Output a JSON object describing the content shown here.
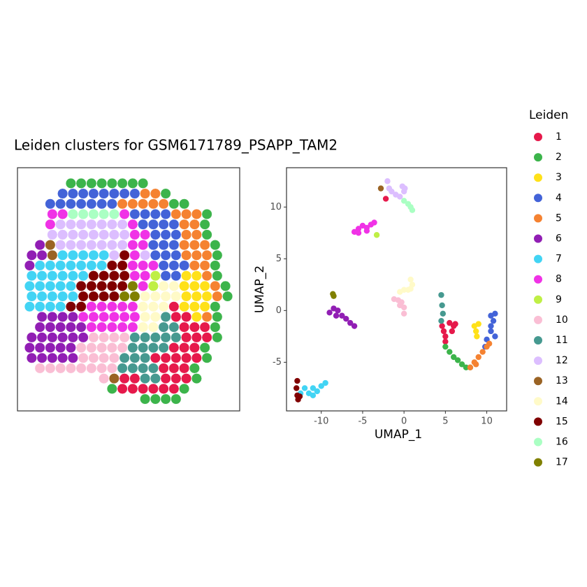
{
  "chart_data": [
    {
      "type": "spatial",
      "title": "Leiden clusters for GSM6171789_PSAPP_TAM2",
      "cells": [
        [
          null,
          null,
          null,
          null,
          2,
          2,
          2,
          2,
          2,
          2,
          2,
          2,
          null,
          null,
          null,
          null,
          null,
          null,
          null,
          null
        ],
        [
          null,
          null,
          null,
          4,
          4,
          4,
          4,
          4,
          4,
          4,
          4,
          5,
          5,
          2,
          null,
          null,
          null,
          null,
          null,
          null
        ],
        [
          null,
          null,
          4,
          4,
          4,
          4,
          4,
          4,
          4,
          5,
          5,
          5,
          5,
          5,
          2,
          2,
          null,
          null,
          null,
          null
        ],
        [
          null,
          null,
          8,
          8,
          16,
          16,
          16,
          16,
          16,
          8,
          4,
          4,
          4,
          4,
          5,
          5,
          5,
          2,
          null,
          null
        ],
        [
          null,
          null,
          8,
          12,
          12,
          12,
          12,
          12,
          12,
          12,
          8,
          4,
          4,
          4,
          4,
          5,
          5,
          2,
          null,
          null
        ],
        [
          null,
          null,
          12,
          12,
          12,
          12,
          12,
          12,
          12,
          12,
          8,
          8,
          4,
          4,
          4,
          5,
          5,
          2,
          null,
          null
        ],
        [
          null,
          6,
          13,
          12,
          12,
          12,
          12,
          12,
          12,
          12,
          8,
          8,
          4,
          4,
          4,
          5,
          5,
          5,
          2,
          null
        ],
        [
          6,
          6,
          13,
          7,
          7,
          7,
          7,
          7,
          12,
          15,
          8,
          12,
          4,
          4,
          4,
          5,
          5,
          5,
          2,
          null
        ],
        [
          6,
          7,
          7,
          7,
          7,
          7,
          7,
          7,
          15,
          15,
          8,
          8,
          8,
          4,
          4,
          4,
          5,
          5,
          2,
          null
        ],
        [
          7,
          7,
          7,
          7,
          7,
          7,
          15,
          15,
          15,
          15,
          8,
          8,
          9,
          4,
          4,
          3,
          3,
          5,
          2,
          null
        ],
        [
          7,
          7,
          7,
          7,
          7,
          15,
          15,
          15,
          15,
          15,
          17,
          8,
          9,
          14,
          14,
          3,
          3,
          3,
          5,
          2
        ],
        [
          7,
          7,
          7,
          7,
          7,
          15,
          15,
          15,
          15,
          17,
          17,
          14,
          14,
          14,
          14,
          3,
          3,
          3,
          5,
          2
        ],
        [
          7,
          7,
          7,
          7,
          15,
          15,
          8,
          8,
          8,
          8,
          8,
          14,
          14,
          14,
          1,
          3,
          3,
          3,
          2,
          null
        ],
        [
          null,
          6,
          6,
          6,
          6,
          8,
          8,
          8,
          8,
          8,
          8,
          14,
          14,
          11,
          1,
          1,
          3,
          5,
          2,
          null
        ],
        [
          null,
          6,
          6,
          6,
          6,
          6,
          8,
          8,
          8,
          8,
          8,
          14,
          14,
          11,
          11,
          1,
          1,
          1,
          2,
          null
        ],
        [
          6,
          6,
          6,
          6,
          6,
          6,
          10,
          10,
          10,
          10,
          11,
          11,
          11,
          11,
          11,
          1,
          1,
          1,
          2,
          null
        ],
        [
          6,
          6,
          6,
          6,
          6,
          10,
          10,
          10,
          10,
          10,
          11,
          11,
          11,
          11,
          1,
          1,
          1,
          2,
          null,
          null
        ],
        [
          6,
          6,
          6,
          6,
          6,
          10,
          10,
          10,
          10,
          11,
          11,
          11,
          1,
          1,
          1,
          1,
          1,
          2,
          null,
          null
        ],
        [
          null,
          10,
          10,
          10,
          10,
          10,
          10,
          10,
          10,
          11,
          11,
          11,
          11,
          1,
          1,
          1,
          2,
          null,
          null,
          null
        ],
        [
          null,
          null,
          null,
          null,
          null,
          null,
          null,
          10,
          13,
          1,
          1,
          11,
          11,
          1,
          1,
          1,
          2,
          null,
          null,
          null
        ],
        [
          null,
          null,
          null,
          null,
          null,
          null,
          null,
          null,
          2,
          1,
          1,
          1,
          1,
          1,
          1,
          2,
          null,
          null,
          null,
          null
        ],
        [
          null,
          null,
          null,
          null,
          null,
          null,
          null,
          null,
          null,
          null,
          null,
          2,
          2,
          2,
          2,
          null,
          null,
          null,
          null,
          null
        ]
      ]
    },
    {
      "type": "scatter",
      "x_label": "UMAP_1",
      "y_label": "UMAP_2",
      "xlim": [
        -14.2,
        12.4
      ],
      "ylim": [
        -9.7,
        13.8
      ],
      "xticks": [
        -10,
        -5,
        0,
        5,
        10
      ],
      "yticks": [
        -5,
        0,
        5,
        10
      ],
      "grid": false,
      "legend_title": "Leiden",
      "legend_position": "right",
      "series": [
        {
          "name": "1",
          "color": "#e6194b",
          "x": [
            4.6,
            5,
            5.5,
            6.2,
            5,
            4.8,
            5.8,
            6,
            -2.2
          ],
          "y": [
            -1.5,
            -2.5,
            -1.2,
            -1.3,
            -3,
            -2,
            -2,
            -1.5,
            10.8
          ]
        },
        {
          "name": "2",
          "color": "#3cb44b",
          "x": [
            5,
            5.5,
            6,
            6.5,
            7,
            7.5,
            8
          ],
          "y": [
            -3.5,
            -4,
            -4.5,
            -4.8,
            -5.2,
            -5.5,
            -5.5
          ]
        },
        {
          "name": "3",
          "color": "#ffe119",
          "x": [
            8.5,
            8.7,
            8.8,
            9
          ],
          "y": [
            -1.5,
            -2,
            -2.5,
            -1.3
          ]
        },
        {
          "name": "4",
          "color": "#4363d8",
          "x": [
            10.5,
            10.8,
            10.5,
            11,
            10,
            9.8,
            10.5,
            11
          ],
          "y": [
            -0.5,
            -1,
            -2,
            -2.5,
            -2.8,
            -3.5,
            -1.5,
            -0.3
          ]
        },
        {
          "name": "5",
          "color": "#f58231",
          "x": [
            8,
            8.5,
            9,
            9.5,
            10,
            10.3,
            8.7
          ],
          "y": [
            -5.5,
            -5,
            -4.5,
            -4,
            -3.5,
            -3.2,
            -5.2
          ]
        },
        {
          "name": "6",
          "color": "#911eb4",
          "x": [
            -9,
            -8.5,
            -8,
            -7.5,
            -7,
            -6.5,
            -6,
            -8.2
          ],
          "y": [
            -0.2,
            0.2,
            0,
            -0.5,
            -0.8,
            -1.2,
            -1.5,
            -0.5
          ]
        },
        {
          "name": "7",
          "color": "#42d4f4",
          "x": [
            -12,
            -11.5,
            -11,
            -10.5,
            -10,
            -9.5,
            -12.5,
            -11
          ],
          "y": [
            -7.5,
            -8,
            -8.2,
            -7.8,
            -7.3,
            -7,
            -8,
            -7.5
          ]
        },
        {
          "name": "8",
          "color": "#f032e6",
          "x": [
            -6,
            -5.5,
            -5,
            -4.5,
            -4,
            -3.6,
            -5.5,
            -4.5
          ],
          "y": [
            7.6,
            7.9,
            8.2,
            8,
            8.3,
            8.5,
            7.5,
            7.7
          ]
        },
        {
          "name": "9",
          "color": "#bfef45",
          "x": [
            -3.3
          ],
          "y": [
            7.3
          ]
        },
        {
          "name": "10",
          "color": "#fabed4",
          "x": [
            -1.2,
            -0.7,
            -0.5,
            0,
            0,
            -0.3
          ],
          "y": [
            1.1,
            1,
            0.5,
            0.3,
            -0.3,
            0.8
          ]
        },
        {
          "name": "11",
          "color": "#469990",
          "x": [
            4.5,
            4.6,
            4.7,
            4.5
          ],
          "y": [
            1.5,
            0.5,
            -0.3,
            -1
          ]
        },
        {
          "name": "12",
          "color": "#dcbeff",
          "x": [
            -2,
            -1.8,
            -1.5,
            -1,
            -0.5,
            0,
            -0.2,
            0.1
          ],
          "y": [
            12.5,
            11.8,
            11.5,
            11.2,
            11,
            11.5,
            12,
            11.8
          ]
        },
        {
          "name": "13",
          "color": "#9a6324",
          "x": [
            -2.8
          ],
          "y": [
            11.8
          ]
        },
        {
          "name": "14",
          "color": "#fffac8",
          "x": [
            0.8,
            1,
            0.5,
            0,
            -0.5,
            0.8
          ],
          "y": [
            3,
            2.5,
            2,
            2,
            1.8,
            2.1
          ]
        },
        {
          "name": "15",
          "color": "#800000",
          "x": [
            -12.9,
            -13,
            -12.9,
            -12.8,
            -12.6
          ],
          "y": [
            -6.8,
            -7.5,
            -8.2,
            -8.6,
            -8.3
          ]
        },
        {
          "name": "16",
          "color": "#aaffc3",
          "x": [
            0,
            0.5,
            0.8,
            1
          ],
          "y": [
            10.6,
            10.3,
            10,
            9.7
          ]
        },
        {
          "name": "17",
          "color": "#808000",
          "x": [
            -8.6,
            -8.5
          ],
          "y": [
            1.6,
            1.4
          ]
        }
      ]
    }
  ]
}
